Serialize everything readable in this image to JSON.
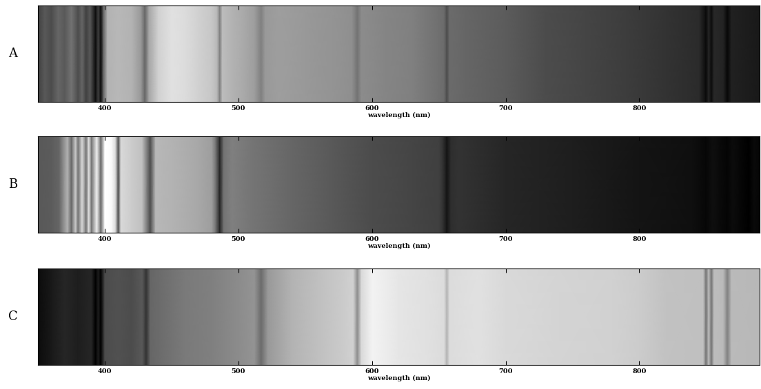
{
  "chart_data": [
    {
      "type": "spectrum",
      "title": "A",
      "x_label": "wavelength (nm)",
      "x": [
        350,
        355,
        360,
        365,
        370,
        375,
        380,
        383,
        386,
        389,
        393,
        395,
        397,
        399,
        402,
        410,
        420,
        427,
        430,
        433,
        440,
        450,
        460,
        470,
        480,
        484,
        486,
        488,
        495,
        505,
        512,
        517,
        520,
        530,
        550,
        570,
        585,
        589,
        592,
        610,
        630,
        650,
        654,
        656,
        658,
        670,
        700,
        730,
        760,
        790,
        820,
        845,
        850,
        852,
        854,
        856,
        863,
        866,
        869,
        890
      ],
      "values": [
        0.25,
        0.35,
        0.3,
        0.4,
        0.35,
        0.45,
        0.3,
        0.4,
        0.25,
        0.35,
        0.05,
        0.25,
        0.05,
        0.4,
        0.7,
        0.72,
        0.7,
        0.6,
        0.4,
        0.65,
        0.82,
        0.88,
        0.86,
        0.82,
        0.78,
        0.72,
        0.5,
        0.74,
        0.7,
        0.66,
        0.62,
        0.5,
        0.6,
        0.62,
        0.6,
        0.58,
        0.56,
        0.45,
        0.55,
        0.52,
        0.5,
        0.44,
        0.42,
        0.3,
        0.42,
        0.4,
        0.36,
        0.3,
        0.27,
        0.24,
        0.2,
        0.17,
        0.04,
        0.15,
        0.05,
        0.16,
        0.14,
        0.03,
        0.13,
        0.1
      ],
      "xlim": [
        350,
        890
      ],
      "xticks": [
        400,
        500,
        600,
        700,
        800
      ],
      "color_range": [
        0,
        1
      ],
      "tick_labels": "x"
    },
    {
      "type": "spectrum",
      "title": "B",
      "x_label": "wavelength (nm)",
      "x": [
        350,
        360,
        366,
        372,
        375,
        378,
        380,
        383,
        386,
        388,
        390,
        394,
        397,
        400,
        405,
        408,
        410,
        412,
        420,
        428,
        434,
        438,
        450,
        470,
        480,
        483,
        486,
        489,
        495,
        510,
        540,
        570,
        600,
        630,
        650,
        653,
        656,
        659,
        665,
        700,
        750,
        800,
        840,
        850,
        855,
        860,
        866,
        870,
        875,
        882,
        886,
        890
      ],
      "values": [
        0.35,
        0.36,
        0.4,
        0.7,
        0.4,
        0.8,
        0.45,
        0.85,
        0.45,
        0.88,
        0.45,
        0.95,
        0.4,
        1.0,
        0.98,
        0.85,
        0.3,
        0.85,
        0.8,
        0.75,
        0.3,
        0.72,
        0.7,
        0.66,
        0.62,
        0.45,
        0.15,
        0.45,
        0.5,
        0.46,
        0.4,
        0.35,
        0.3,
        0.27,
        0.25,
        0.2,
        0.08,
        0.18,
        0.2,
        0.15,
        0.12,
        0.08,
        0.06,
        0.03,
        0.06,
        0.04,
        0.02,
        0.05,
        0.03,
        0.0,
        0.04,
        0.02
      ],
      "xlim": [
        350,
        890
      ],
      "xticks": [
        400,
        500,
        600,
        700,
        800
      ],
      "color_range": [
        0,
        1
      ],
      "tick_labels": "x"
    },
    {
      "type": "spectrum",
      "title": "C",
      "x_label": "wavelength (nm)",
      "x": [
        350,
        360,
        370,
        380,
        390,
        393,
        395,
        397,
        400,
        410,
        420,
        428,
        431,
        434,
        440,
        460,
        480,
        500,
        512,
        517,
        522,
        540,
        560,
        580,
        586,
        589,
        592,
        600,
        620,
        640,
        654,
        656,
        658,
        680,
        700,
        740,
        780,
        800,
        820,
        848,
        850,
        852,
        854,
        856,
        863,
        866,
        869,
        890
      ],
      "values": [
        0.05,
        0.1,
        0.15,
        0.12,
        0.15,
        0.0,
        0.12,
        0.0,
        0.3,
        0.32,
        0.3,
        0.35,
        0.2,
        0.4,
        0.42,
        0.48,
        0.5,
        0.55,
        0.58,
        0.42,
        0.6,
        0.7,
        0.75,
        0.8,
        0.82,
        0.55,
        0.85,
        0.95,
        0.9,
        0.88,
        0.86,
        0.7,
        0.86,
        0.88,
        0.85,
        0.83,
        0.82,
        0.8,
        0.76,
        0.75,
        0.45,
        0.74,
        0.45,
        0.74,
        0.73,
        0.5,
        0.73,
        0.72
      ],
      "xlim": [
        350,
        890
      ],
      "xticks": [
        400,
        500,
        600,
        700,
        800
      ],
      "color_range": [
        0,
        1
      ],
      "tick_labels": "x"
    }
  ]
}
